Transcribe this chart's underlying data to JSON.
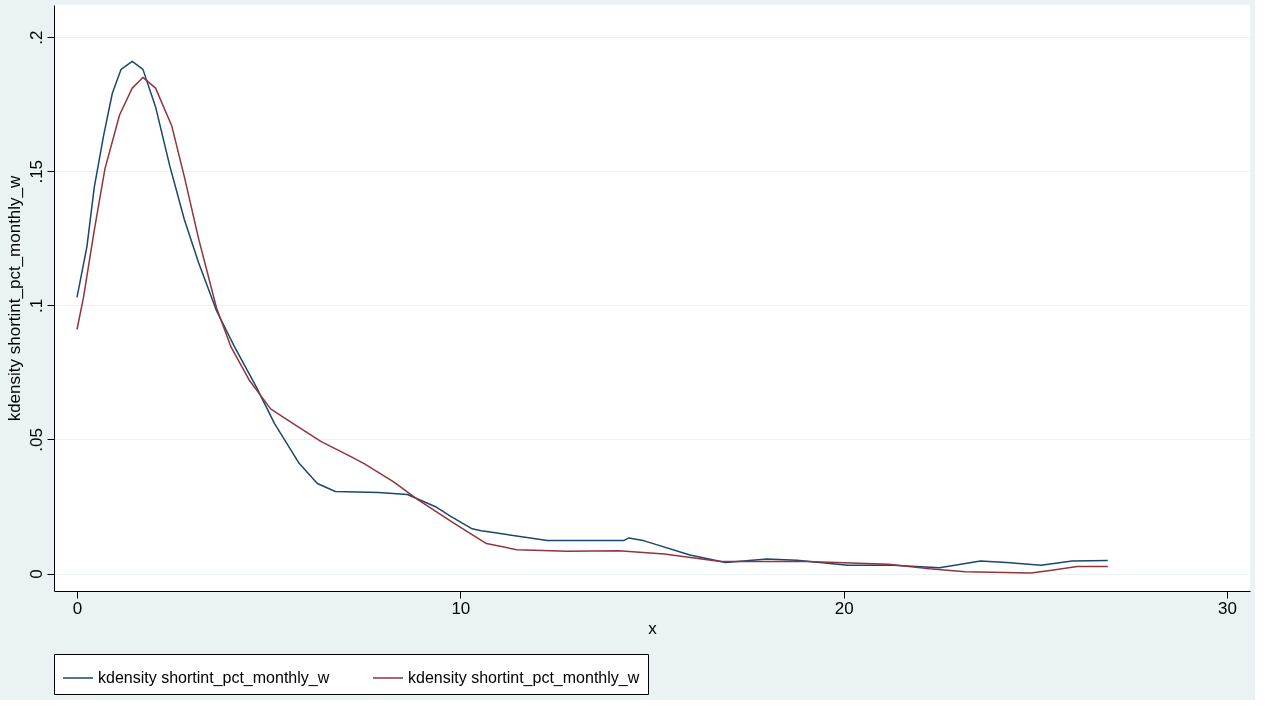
{
  "chart_data": {
    "type": "line",
    "xlabel": "x",
    "ylabel": "kdensity shortint_pct_monthly_w",
    "xlim": [
      -0.6,
      30.6
    ],
    "ylim": [
      -0.0065,
      0.212
    ],
    "xticks": [
      0,
      10,
      20,
      30
    ],
    "yticks": [
      {
        "value": 0,
        "label": "0"
      },
      {
        "value": 0.05,
        "label": ".05"
      },
      {
        "value": 0.1,
        "label": ".1"
      },
      {
        "value": 0.15,
        "label": ".15"
      },
      {
        "value": 0.2,
        "label": ".2"
      }
    ],
    "grid": "y",
    "legend": "bottom",
    "series": [
      {
        "name": "kdensity shortint_pct_monthly_w",
        "color": "#1a476f",
        "x": [
          0,
          0.26,
          0.45,
          0.69,
          0.92,
          1.15,
          1.44,
          1.72,
          2.05,
          2.42,
          2.8,
          3.17,
          3.64,
          4.11,
          4.68,
          5.15,
          5.8,
          6.27,
          6.74,
          7.87,
          8.62,
          9.37,
          9.75,
          10.31,
          10.54,
          10.87,
          12.27,
          14.26,
          14.4,
          14.8,
          15.99,
          16.92,
          17.99,
          18.78,
          20.11,
          21.3,
          22.5,
          23.57,
          24.36,
          25.15,
          25.96,
          26.89
        ],
        "values": [
          0.103,
          0.122,
          0.144,
          0.163,
          0.179,
          0.188,
          0.191,
          0.188,
          0.174,
          0.152,
          0.132,
          0.116,
          0.098,
          0.0845,
          0.0695,
          0.056,
          0.041,
          0.0336,
          0.0306,
          0.0302,
          0.0295,
          0.0248,
          0.0213,
          0.0167,
          0.016,
          0.0153,
          0.0123,
          0.0123,
          0.0133,
          0.0122,
          0.0069,
          0.0041,
          0.0054,
          0.005,
          0.0031,
          0.0031,
          0.0022,
          0.0047,
          0.004,
          0.0031,
          0.0047,
          0.0049
        ]
      },
      {
        "name": "kdensity shortint_pct_monthly_w",
        "color": "#90353b",
        "x": [
          0,
          0.17,
          0.45,
          0.73,
          1.11,
          1.44,
          1.72,
          2.05,
          2.47,
          2.8,
          3.17,
          3.64,
          4.02,
          4.49,
          5.05,
          5.71,
          6.37,
          7.12,
          7.49,
          8.25,
          8.9,
          9.84,
          10.68,
          11.47,
          12.8,
          14.13,
          15.32,
          16.79,
          19.04,
          21.17,
          22.24,
          23.17,
          24.89,
          25.43,
          26.09,
          26.89
        ],
        "values": [
          0.091,
          0.103,
          0.128,
          0.151,
          0.171,
          0.181,
          0.185,
          0.181,
          0.167,
          0.148,
          0.125,
          0.099,
          0.0844,
          0.0722,
          0.0614,
          0.0553,
          0.0492,
          0.0438,
          0.041,
          0.0343,
          0.0275,
          0.0187,
          0.0112,
          0.0089,
          0.0083,
          0.0085,
          0.0073,
          0.0045,
          0.0045,
          0.0035,
          0.0018,
          0.0007,
          0.0002,
          0.0012,
          0.0026,
          0.0026
        ]
      }
    ]
  }
}
